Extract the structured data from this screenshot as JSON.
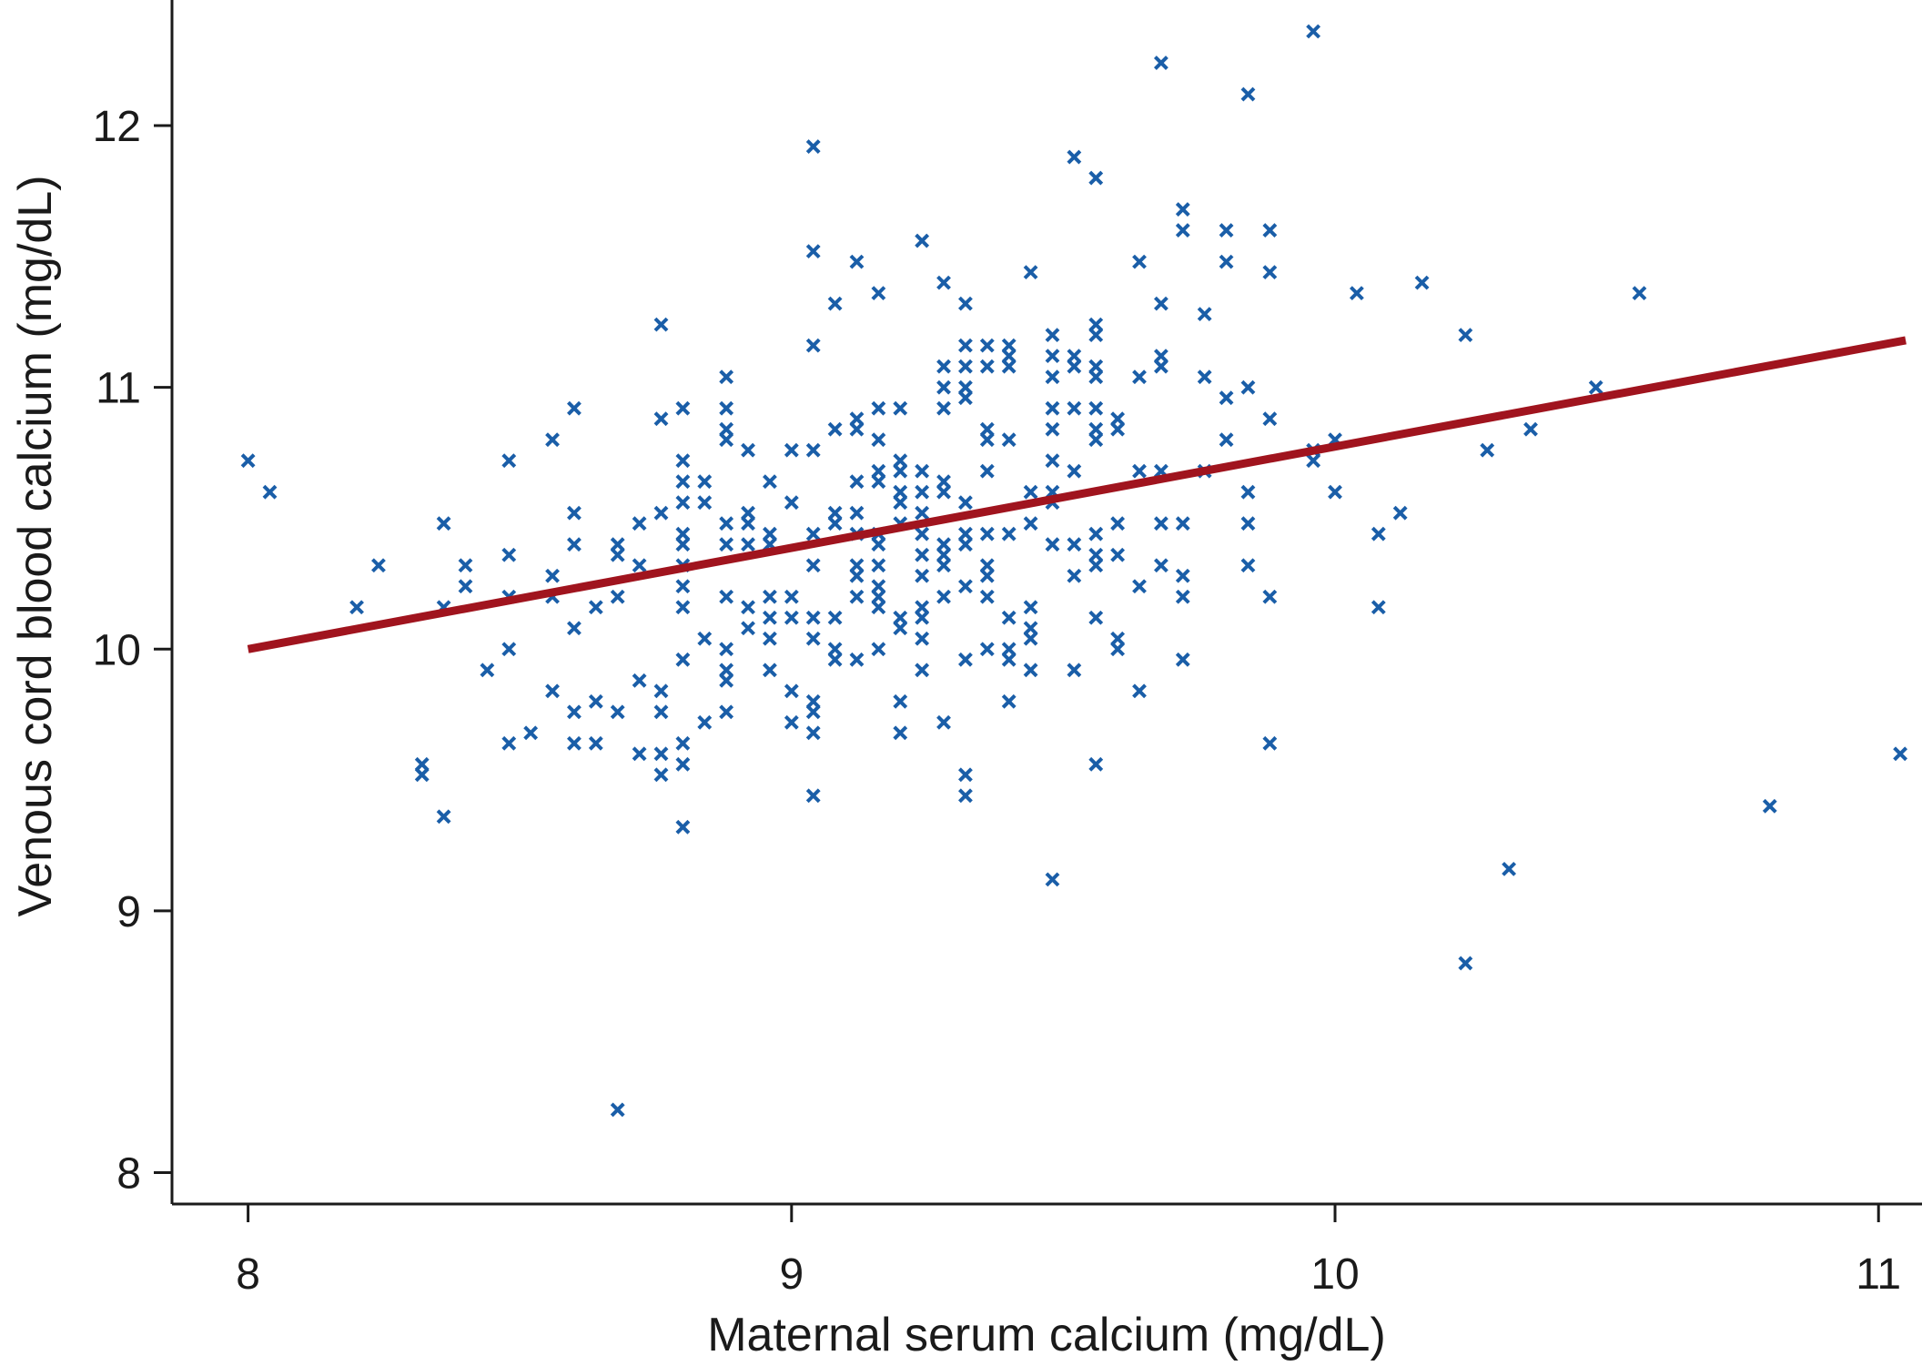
{
  "chart_data": {
    "type": "scatter",
    "x_label": "Maternal serum calcium (mg/dL)",
    "y_label": "Venous cord blood calcium (mg/dL)",
    "xlim": [
      7.86,
      11.08
    ],
    "ylim": [
      7.88,
      12.48
    ],
    "xticks": [
      8,
      9,
      10,
      11
    ],
    "yticks": [
      8,
      9,
      10,
      11,
      12
    ],
    "series": [
      {
        "color": "#1a5ea8",
        "x": [
          8.0,
          8.04,
          8.2,
          8.24,
          8.32,
          8.32,
          8.36,
          8.36,
          8.36,
          8.4,
          8.4,
          8.44,
          8.48,
          8.48,
          8.48,
          8.48,
          8.48,
          8.52,
          8.56,
          8.56,
          8.56,
          8.56,
          8.6,
          8.6,
          8.6,
          8.6,
          8.6,
          8.6,
          8.64,
          8.64,
          8.64,
          8.68,
          8.68,
          8.68,
          8.68,
          8.68,
          8.72,
          8.72,
          8.72,
          8.72,
          8.76,
          8.76,
          8.76,
          8.76,
          8.76,
          8.76,
          8.76,
          8.8,
          8.8,
          8.8,
          8.8,
          8.8,
          8.8,
          8.8,
          8.8,
          8.8,
          8.8,
          8.8,
          8.8,
          8.8,
          8.84,
          8.84,
          8.84,
          8.84,
          8.88,
          8.88,
          8.88,
          8.88,
          8.88,
          8.88,
          8.88,
          8.88,
          8.88,
          8.88,
          8.88,
          8.92,
          8.92,
          8.92,
          8.92,
          8.92,
          8.92,
          8.96,
          8.96,
          8.96,
          8.96,
          8.96,
          8.96,
          8.96,
          9.0,
          9.0,
          9.0,
          9.0,
          9.0,
          9.0,
          9.04,
          9.04,
          9.04,
          9.04,
          9.04,
          9.04,
          9.04,
          9.04,
          9.04,
          9.04,
          9.04,
          9.04,
          9.08,
          9.08,
          9.08,
          9.08,
          9.08,
          9.08,
          9.08,
          9.12,
          9.12,
          9.12,
          9.12,
          9.12,
          9.12,
          9.12,
          9.12,
          9.12,
          9.12,
          9.16,
          9.16,
          9.16,
          9.16,
          9.16,
          9.16,
          9.16,
          9.16,
          9.16,
          9.16,
          9.16,
          9.16,
          9.2,
          9.2,
          9.2,
          9.2,
          9.2,
          9.2,
          9.2,
          9.2,
          9.2,
          9.2,
          9.24,
          9.24,
          9.24,
          9.24,
          9.24,
          9.24,
          9.24,
          9.24,
          9.24,
          9.24,
          9.24,
          9.28,
          9.28,
          9.28,
          9.28,
          9.28,
          9.28,
          9.28,
          9.28,
          9.28,
          9.28,
          9.28,
          9.32,
          9.32,
          9.32,
          9.32,
          9.32,
          9.32,
          9.32,
          9.32,
          9.32,
          9.32,
          9.32,
          9.32,
          9.36,
          9.36,
          9.36,
          9.36,
          9.36,
          9.36,
          9.36,
          9.36,
          9.36,
          9.36,
          9.4,
          9.4,
          9.4,
          9.4,
          9.4,
          9.4,
          9.4,
          9.4,
          9.4,
          9.44,
          9.44,
          9.44,
          9.44,
          9.44,
          9.44,
          9.44,
          9.48,
          9.48,
          9.48,
          9.48,
          9.48,
          9.48,
          9.48,
          9.48,
          9.48,
          9.48,
          9.52,
          9.52,
          9.52,
          9.52,
          9.52,
          9.52,
          9.52,
          9.52,
          9.56,
          9.56,
          9.56,
          9.56,
          9.56,
          9.56,
          9.56,
          9.56,
          9.56,
          9.56,
          9.56,
          9.56,
          9.56,
          9.6,
          9.6,
          9.6,
          9.6,
          9.6,
          9.6,
          9.64,
          9.64,
          9.64,
          9.64,
          9.64,
          9.68,
          9.68,
          9.68,
          9.68,
          9.68,
          9.68,
          9.68,
          9.72,
          9.72,
          9.72,
          9.72,
          9.72,
          9.72,
          9.76,
          9.76,
          9.76,
          9.8,
          9.8,
          9.8,
          9.8,
          9.84,
          9.84,
          9.84,
          9.84,
          9.84,
          9.88,
          9.88,
          9.88,
          9.88,
          9.88,
          9.96,
          9.96,
          9.96,
          10.0,
          10.0,
          10.04,
          10.08,
          10.08,
          10.12,
          10.16,
          10.24,
          10.24,
          10.28,
          10.32,
          10.36,
          10.48,
          10.56,
          10.8,
          11.04
        ],
        "values": [
          10.72,
          10.6,
          10.16,
          10.32,
          9.56,
          9.52,
          9.36,
          10.48,
          10.16,
          10.32,
          10.24,
          9.92,
          10.72,
          10.36,
          10.2,
          10.0,
          9.64,
          9.68,
          10.8,
          10.28,
          10.2,
          9.84,
          10.92,
          10.52,
          10.4,
          10.08,
          9.76,
          9.64,
          10.16,
          9.8,
          9.64,
          10.4,
          10.36,
          10.2,
          9.76,
          8.24,
          10.48,
          10.32,
          9.88,
          9.6,
          11.24,
          10.88,
          10.52,
          9.84,
          9.76,
          9.6,
          9.52,
          10.92,
          10.72,
          10.64,
          10.56,
          10.44,
          10.4,
          10.32,
          10.24,
          10.16,
          9.96,
          9.64,
          9.56,
          9.32,
          10.64,
          10.56,
          10.04,
          9.72,
          11.04,
          10.92,
          10.84,
          10.8,
          10.48,
          10.4,
          10.2,
          10.0,
          9.92,
          9.88,
          9.76,
          10.76,
          10.52,
          10.48,
          10.4,
          10.16,
          10.08,
          10.64,
          10.44,
          10.4,
          10.2,
          10.12,
          10.04,
          9.92,
          10.76,
          10.56,
          10.2,
          10.12,
          9.84,
          9.72,
          11.92,
          11.52,
          11.16,
          10.76,
          10.44,
          10.32,
          10.12,
          10.04,
          9.8,
          9.76,
          9.68,
          9.44,
          11.32,
          10.84,
          10.52,
          10.48,
          10.12,
          10.0,
          9.96,
          11.48,
          10.88,
          10.84,
          10.64,
          10.52,
          10.44,
          10.32,
          10.28,
          10.2,
          9.96,
          11.36,
          10.92,
          10.8,
          10.68,
          10.64,
          10.44,
          10.4,
          10.32,
          10.24,
          10.2,
          10.16,
          10.0,
          10.92,
          10.72,
          10.68,
          10.6,
          10.56,
          10.48,
          10.12,
          10.08,
          9.8,
          9.68,
          11.56,
          10.68,
          10.6,
          10.52,
          10.44,
          10.36,
          10.28,
          10.16,
          10.12,
          10.04,
          9.92,
          11.4,
          11.08,
          11.0,
          10.92,
          10.64,
          10.6,
          10.4,
          10.36,
          10.32,
          10.2,
          9.72,
          11.32,
          11.16,
          11.08,
          11.0,
          10.96,
          10.56,
          10.44,
          10.4,
          10.24,
          9.96,
          9.52,
          9.44,
          11.16,
          11.08,
          10.84,
          10.8,
          10.68,
          10.44,
          10.32,
          10.28,
          10.2,
          10.0,
          11.16,
          11.12,
          11.08,
          10.8,
          10.44,
          10.12,
          10.0,
          9.96,
          9.8,
          11.44,
          10.6,
          10.48,
          10.16,
          10.08,
          10.04,
          9.92,
          11.2,
          11.12,
          11.04,
          10.92,
          10.84,
          10.72,
          10.6,
          10.56,
          10.4,
          9.12,
          11.88,
          11.12,
          11.08,
          10.92,
          10.68,
          10.4,
          10.28,
          9.92,
          11.8,
          11.24,
          11.2,
          11.08,
          11.04,
          10.92,
          10.84,
          10.8,
          10.44,
          10.36,
          10.32,
          10.12,
          9.56,
          10.88,
          10.84,
          10.48,
          10.36,
          10.04,
          10.0,
          11.48,
          11.04,
          10.68,
          10.24,
          9.84,
          12.24,
          11.32,
          11.12,
          11.08,
          10.68,
          10.48,
          10.32,
          11.68,
          11.6,
          10.48,
          10.28,
          10.2,
          9.96,
          11.28,
          11.04,
          10.68,
          11.6,
          11.48,
          10.96,
          10.8,
          12.12,
          11.0,
          10.6,
          10.48,
          10.32,
          11.6,
          11.44,
          10.88,
          10.2,
          9.64,
          12.36,
          10.76,
          10.72,
          10.8,
          10.6,
          11.36,
          10.44,
          10.16,
          10.52,
          11.4,
          11.2,
          8.8,
          10.76,
          9.16,
          10.84,
          11.0,
          11.36,
          9.4,
          9.6
        ]
      }
    ],
    "trend": {
      "x": [
        8,
        11.05
      ],
      "values": [
        10.0,
        11.18
      ],
      "color": "#a0141e"
    }
  }
}
